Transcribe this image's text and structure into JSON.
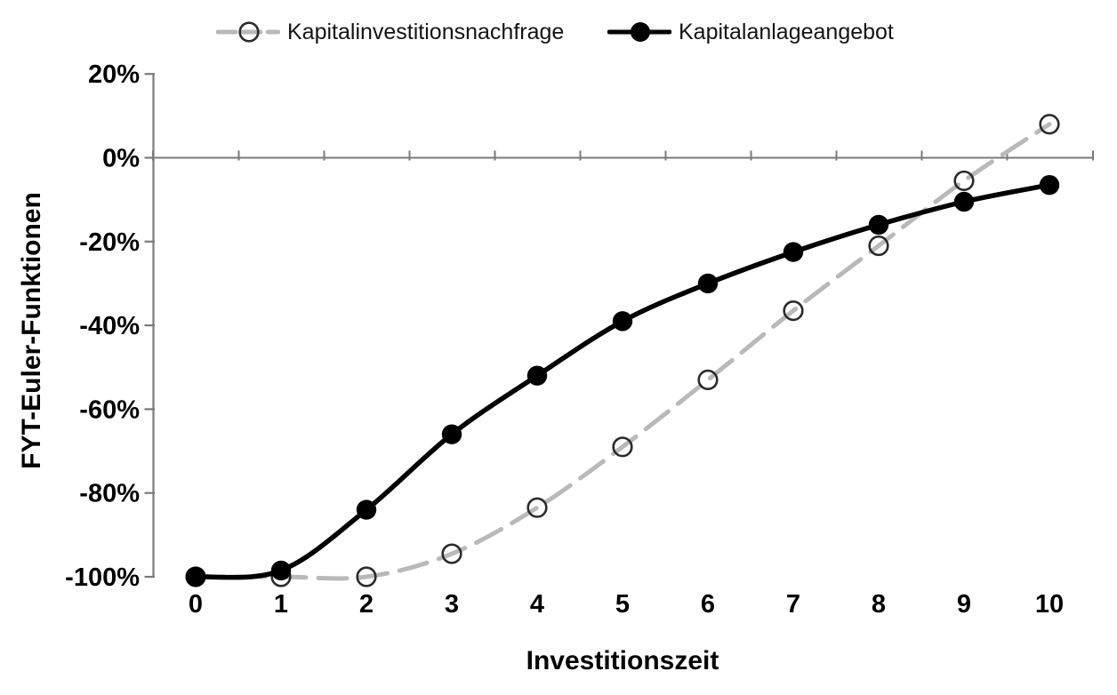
{
  "figure": {
    "background": "#ffffff",
    "axis_color": "#7a7a7a",
    "text_color": "#000000"
  },
  "legend": {
    "position": "top",
    "items": [
      {
        "label": "Kapitalinvestitionsnachfrage",
        "style": "gray-dashed-line-open-circle"
      },
      {
        "label": "Kapitalanlageangebot",
        "style": "black-solid-line-filled-circle"
      }
    ]
  },
  "chart_data": {
    "type": "line",
    "title": "",
    "xlabel": "Investitionszeit",
    "ylabel": "FYT-Euler-Funktionen",
    "categories": [
      0,
      1,
      2,
      3,
      4,
      5,
      6,
      7,
      8,
      9,
      10
    ],
    "x_tick_labels": [
      "0",
      "1",
      "2",
      "3",
      "4",
      "5",
      "6",
      "7",
      "8",
      "9",
      "10"
    ],
    "y_ticks": [
      20,
      0,
      -20,
      -40,
      -60,
      -80,
      -100
    ],
    "y_tick_labels": [
      "20%",
      "0%",
      "-20%",
      "-40%",
      "-60%",
      "-80%",
      "-100%"
    ],
    "ylim": [
      -100,
      20
    ],
    "unit": "percent",
    "grid": false,
    "x_axis_at_y": 0,
    "legend_position": "top",
    "series": [
      {
        "name": "Kapitalinvestitionsnachfrage",
        "values": [
          -100,
          -100,
          -100,
          -94.5,
          -83.5,
          -69,
          -53,
          -36.5,
          -21,
          -5.5,
          8
        ],
        "color": "#b9b9b9",
        "line_style": "dashed",
        "marker": "open-circle",
        "marker_color": "#2b2b2b"
      },
      {
        "name": "Kapitalanlageangebot",
        "values": [
          -100,
          -98.5,
          -84,
          -66,
          -52,
          -39,
          -30,
          -22.5,
          -16,
          -10.5,
          -6.5
        ],
        "color": "#000000",
        "line_style": "solid",
        "marker": "filled-circle",
        "marker_color": "#000000"
      }
    ]
  }
}
